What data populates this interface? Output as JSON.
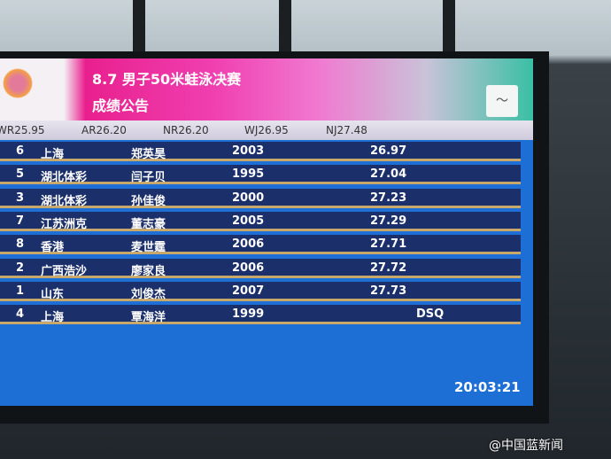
{
  "header": {
    "title": "8.7 男子50米蛙泳决赛",
    "subtitle": "成绩公告"
  },
  "records": [
    "WR25.95",
    "AR26.20",
    "NR26.20",
    "WJ26.95",
    "NJ27.48"
  ],
  "results": [
    {
      "lane": "6",
      "team": "上海",
      "name": "郑英昊",
      "year": "2003",
      "time": "26.97"
    },
    {
      "lane": "5",
      "team": "湖北体彩",
      "name": "闫子贝",
      "year": "1995",
      "time": "27.04"
    },
    {
      "lane": "3",
      "team": "湖北体彩",
      "name": "孙佳俊",
      "year": "2000",
      "time": "27.23"
    },
    {
      "lane": "7",
      "team": "江苏洲克",
      "name": "董志豪",
      "year": "2005",
      "time": "27.29"
    },
    {
      "lane": "8",
      "team": "香港",
      "name": "麦世霆",
      "year": "2006",
      "time": "27.71"
    },
    {
      "lane": "2",
      "team": "广西浩沙",
      "name": "廖家良",
      "year": "2006",
      "time": "27.72"
    },
    {
      "lane": "1",
      "team": "山东",
      "name": "刘俊杰",
      "year": "2007",
      "time": "27.73"
    },
    {
      "lane": "4",
      "team": "上海",
      "name": "覃海洋",
      "year": "1999",
      "time": "DSQ"
    }
  ],
  "clock": "20:03:21",
  "watermark": "@中国蓝新闻",
  "colors": {
    "screen": "#1d6fd6",
    "row": "#1b2f6a",
    "header_pink": "#f03fb0",
    "header_green": "#39c0a4"
  }
}
